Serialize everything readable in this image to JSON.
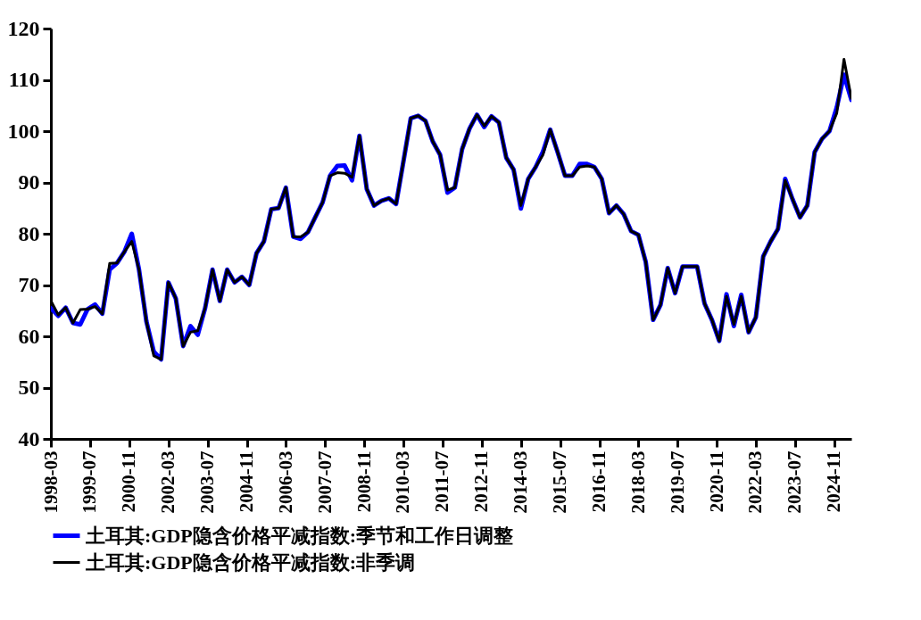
{
  "chart_data": {
    "type": "line",
    "x": [
      "1998-03",
      "1998-06",
      "1998-09",
      "1998-12",
      "1999-03",
      "1999-06",
      "1999-09",
      "1999-12",
      "2000-03",
      "2000-06",
      "2000-09",
      "2000-12",
      "2001-03",
      "2001-06",
      "2001-09",
      "2001-12",
      "2002-03",
      "2002-06",
      "2002-09",
      "2002-12",
      "2003-03",
      "2003-06",
      "2003-09",
      "2003-12",
      "2004-03",
      "2004-06",
      "2004-09",
      "2004-12",
      "2005-03",
      "2005-06",
      "2005-09",
      "2005-12",
      "2006-03",
      "2006-06",
      "2006-09",
      "2006-12",
      "2007-03",
      "2007-06",
      "2007-09",
      "2007-12",
      "2008-03",
      "2008-06",
      "2008-09",
      "2008-12",
      "2009-03",
      "2009-06",
      "2009-09",
      "2009-12",
      "2010-03",
      "2010-06",
      "2010-09",
      "2010-12",
      "2011-03",
      "2011-06",
      "2011-09",
      "2011-12",
      "2012-03",
      "2012-06",
      "2012-09",
      "2012-12",
      "2013-03",
      "2013-06",
      "2013-09",
      "2013-12",
      "2014-03",
      "2014-06",
      "2014-09",
      "2014-12",
      "2015-03",
      "2015-06",
      "2015-09",
      "2015-12",
      "2016-03",
      "2016-06",
      "2016-09",
      "2016-12",
      "2017-03",
      "2017-06",
      "2017-09",
      "2017-12",
      "2018-03",
      "2018-06",
      "2018-09",
      "2018-12",
      "2019-03",
      "2019-06",
      "2019-09",
      "2019-12",
      "2020-03",
      "2020-06",
      "2020-09",
      "2020-12",
      "2021-03",
      "2021-06",
      "2021-09",
      "2021-12",
      "2022-03",
      "2022-06",
      "2022-09",
      "2022-12",
      "2023-03",
      "2023-06",
      "2023-09",
      "2023-12",
      "2024-03",
      "2024-06",
      "2024-09",
      "2024-12",
      "2025-03",
      "2025-06"
    ],
    "series": [
      {
        "name": "土耳其:GDP隐含价格平减指数:季节和工作日调整",
        "color": "#0000ff",
        "values": [
          65.5,
          64.0,
          65.6,
          62.6,
          62.3,
          65.3,
          66.2,
          64.4,
          73.0,
          74.3,
          76.5,
          80.0,
          73.0,
          62.9,
          57.0,
          55.5,
          70.5,
          67.4,
          58.1,
          62.0,
          60.3,
          65.5,
          73.0,
          66.9,
          73.0,
          70.5,
          71.6,
          70.0,
          76.2,
          78.5,
          84.8,
          85.0,
          89.0,
          79.4,
          79.0,
          80.3,
          83.2,
          86.1,
          91.3,
          93.2,
          93.3,
          90.4,
          99.1,
          88.7,
          85.5,
          86.4,
          86.9,
          85.8,
          94,
          102.5,
          103.0,
          102.0,
          98,
          95.4,
          88.0,
          89.0,
          96.5,
          100.5,
          103.2,
          100.8,
          102.9,
          101.7,
          94.8,
          92.5,
          84.9,
          90.7,
          93.0,
          96.0,
          100.3,
          95.9,
          91.3,
          91.3,
          93.6,
          93.6,
          93.0,
          90.7,
          84.0,
          85.5,
          83.8,
          80.5,
          79.8,
          74.5,
          63.2,
          66.1,
          73.3,
          68.4,
          73.6,
          73.6,
          73.6,
          66.4,
          63.2,
          59.1,
          68.2,
          62.0,
          68.1,
          60.8,
          63.7,
          75.6,
          78.5,
          80.9,
          90.7,
          86.7,
          83.2,
          85.5,
          95.9,
          98.5,
          100.0,
          104.6,
          111.0,
          106.1
        ]
      },
      {
        "name": "土耳其:GDP隐含价格平减指数:非季调",
        "color": "#000000",
        "values": [
          66.9,
          64.2,
          65.6,
          62.6,
          65.2,
          65.3,
          65.8,
          64.4,
          74.2,
          74.3,
          76.5,
          78.5,
          73.0,
          62.9,
          56.2,
          55.5,
          70.5,
          67.4,
          58.1,
          60.8,
          61.1,
          65.5,
          73.0,
          66.9,
          73.0,
          70.5,
          71.6,
          70.0,
          76.2,
          78.5,
          84.8,
          85.0,
          89.0,
          79.4,
          79.4,
          80.3,
          83.2,
          86.1,
          91.3,
          91.9,
          91.8,
          91.0,
          99.1,
          88.7,
          85.5,
          86.4,
          86.9,
          85.8,
          94,
          102.5,
          103.0,
          102.0,
          98,
          95.4,
          88.5,
          89.0,
          96.5,
          100.5,
          103.2,
          101.0,
          102.9,
          101.7,
          94.8,
          92.5,
          85.5,
          90.7,
          93.0,
          95.4,
          100.3,
          95.9,
          91.3,
          91.3,
          93.0,
          93.2,
          93.0,
          90.7,
          84.0,
          85.5,
          83.8,
          80.5,
          79.8,
          74.5,
          63.2,
          66.1,
          73.3,
          68.4,
          73.6,
          73.6,
          73.6,
          66.4,
          63.2,
          59.1,
          67.8,
          62.3,
          67.8,
          60.8,
          63.7,
          75.6,
          78.5,
          80.9,
          90.4,
          86.7,
          83.2,
          85.5,
          95.9,
          98.5,
          100.0,
          103.5,
          114.0,
          106.4
        ]
      }
    ],
    "xlim": [
      "1998-03",
      "2025-06"
    ],
    "xticks": [
      "1998-03",
      "1999-07",
      "2000-11",
      "2002-03",
      "2003-07",
      "2004-11",
      "2006-03",
      "2007-07",
      "2008-11",
      "2010-03",
      "2011-07",
      "2012-11",
      "2014-03",
      "2015-07",
      "2016-11",
      "2018-03",
      "2019-07",
      "2020-11",
      "2022-03",
      "2023-07",
      "2024-11"
    ],
    "ylim": [
      40,
      120
    ],
    "yticks": [
      40,
      50,
      60,
      70,
      80,
      90,
      100,
      110,
      120
    ],
    "grid": false,
    "legend": "bottom",
    "line_style": "solid",
    "marker": "none"
  }
}
